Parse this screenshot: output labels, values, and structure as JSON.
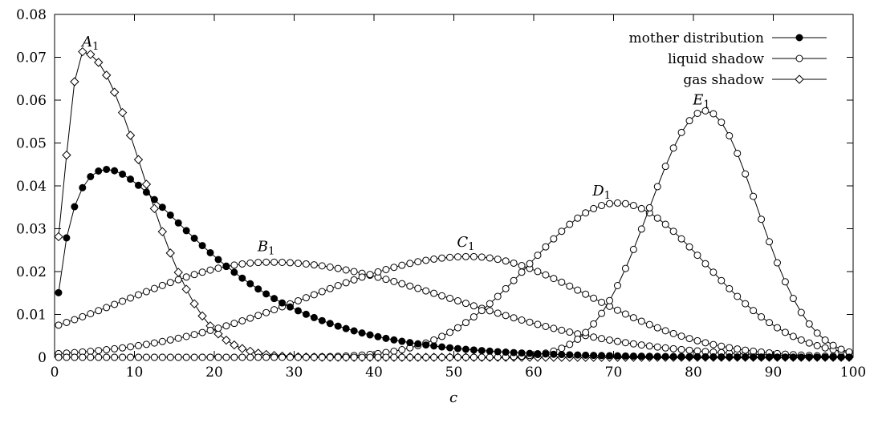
{
  "chart_data": {
    "type": "line",
    "xlabel": "c",
    "ylabel": "",
    "xlim": [
      0,
      100
    ],
    "ylim": [
      0,
      0.08
    ],
    "xticks": [
      "0",
      "10",
      "20",
      "30",
      "40",
      "50",
      "60",
      "70",
      "80",
      "90",
      "100"
    ],
    "yticks": [
      "0",
      "0.01",
      "0.02",
      "0.03",
      "0.04",
      "0.05",
      "0.06",
      "0.07",
      "0.08"
    ],
    "grid": false,
    "legend_position": "top-right",
    "legend": [
      {
        "label": "mother distribution",
        "marker": "filled-circle"
      },
      {
        "label": "liquid shadow",
        "marker": "open-circle"
      },
      {
        "label": "gas shadow",
        "marker": "open-diamond"
      }
    ],
    "annotations": [
      {
        "base": "A",
        "sub": "1",
        "x": 4.5,
        "y": 0.0725
      },
      {
        "base": "B",
        "sub": "1",
        "x": 26.5,
        "y": 0.0248
      },
      {
        "base": "C",
        "sub": "1",
        "x": 51.5,
        "y": 0.0258
      },
      {
        "base": "D",
        "sub": "1",
        "x": 68.5,
        "y": 0.0378
      },
      {
        "base": "E",
        "sub": "1",
        "x": 81.0,
        "y": 0.059
      }
    ],
    "series": [
      {
        "role": "mother",
        "marker": "filled-circle",
        "gen": {
          "form": "gamma",
          "k": 1.65,
          "theta": 10.0,
          "scale": 1.0
        }
      },
      {
        "role": "liquid",
        "curve": "A",
        "marker": "diamond",
        "gen": {
          "form": "peak",
          "peak": 0.0713,
          "mode": 3.5,
          "left": 2.2,
          "right": 7.5,
          "p": 2
        }
      },
      {
        "role": "liquid",
        "curve": "B",
        "marker": "open-circle",
        "gen": {
          "form": "peak",
          "peak": 0.0222,
          "mode": 27.0,
          "left": 18.0,
          "right": 23.0,
          "p": 2
        }
      },
      {
        "role": "liquid",
        "curve": "C",
        "marker": "open-circle",
        "gen": {
          "form": "peak",
          "peak": 0.0235,
          "mode": 52.0,
          "left": 20.0,
          "right": 15.0,
          "p": 2
        }
      },
      {
        "role": "liquid",
        "curve": "D",
        "marker": "open-circle",
        "gen": {
          "form": "peak",
          "peak": 0.036,
          "mode": 70.5,
          "left": 11.0,
          "right": 11.0,
          "p": 2
        }
      },
      {
        "role": "liquid",
        "curve": "E",
        "marker": "open-circle",
        "gen": {
          "form": "peak",
          "peak": 0.0575,
          "mode": 81.5,
          "left": 7.0,
          "right": 6.5,
          "p": 2
        }
      }
    ]
  }
}
